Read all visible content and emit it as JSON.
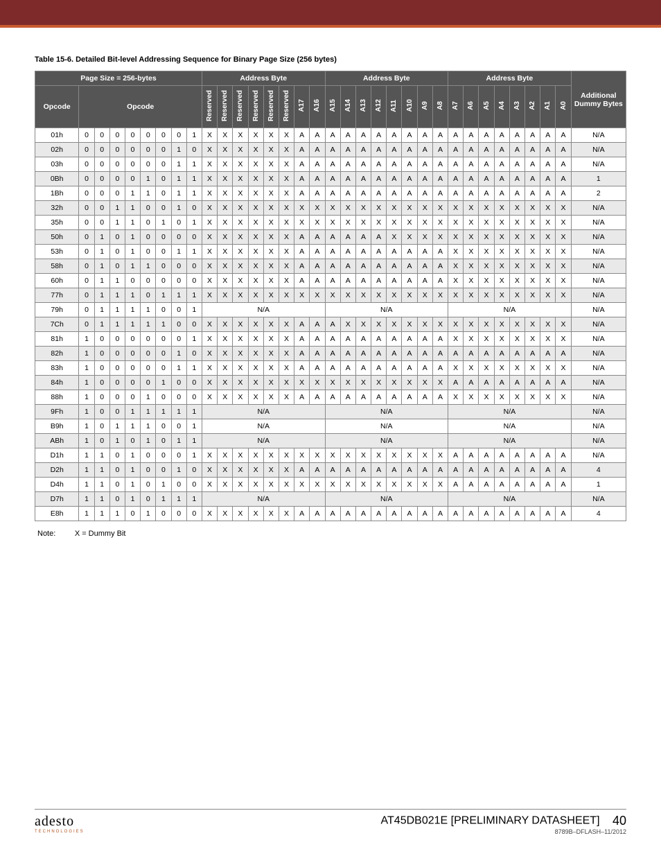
{
  "table_caption": "Table 15-6.   Detailed Bit-level Addressing Sequence for Binary Page Size (256 bytes)",
  "headers": {
    "page_size": "Page Size = 256-bytes",
    "address_byte": "Address Byte",
    "opcode1": "Opcode",
    "opcode2": "Opcode",
    "extra": "Additional Dummy Bytes",
    "reserved": "Reserved",
    "bits": [
      "A17",
      "A16",
      "A15",
      "A14",
      "A13",
      "A12",
      "A11",
      "A10",
      "A9",
      "A8",
      "A7",
      "A6",
      "A5",
      "A4",
      "A3",
      "A2",
      "A1",
      "A0"
    ]
  },
  "rows": [
    {
      "op": "01h",
      "bits": [
        "0",
        "0",
        "0",
        "0",
        "0",
        "0",
        "0",
        "1"
      ],
      "ab1": [
        "X",
        "X",
        "X",
        "X",
        "X",
        "X",
        "A",
        "A"
      ],
      "ab2": [
        "A",
        "A",
        "A",
        "A",
        "A",
        "A",
        "A",
        "A"
      ],
      "ab3": [
        "A",
        "A",
        "A",
        "A",
        "A",
        "A",
        "A",
        "A"
      ],
      "extra": "N/A"
    },
    {
      "op": "02h",
      "bits": [
        "0",
        "0",
        "0",
        "0",
        "0",
        "0",
        "1",
        "0"
      ],
      "ab1": [
        "X",
        "X",
        "X",
        "X",
        "X",
        "X",
        "A",
        "A"
      ],
      "ab2": [
        "A",
        "A",
        "A",
        "A",
        "A",
        "A",
        "A",
        "A"
      ],
      "ab3": [
        "A",
        "A",
        "A",
        "A",
        "A",
        "A",
        "A",
        "A"
      ],
      "extra": "N/A"
    },
    {
      "op": "03h",
      "bits": [
        "0",
        "0",
        "0",
        "0",
        "0",
        "0",
        "1",
        "1"
      ],
      "ab1": [
        "X",
        "X",
        "X",
        "X",
        "X",
        "X",
        "A",
        "A"
      ],
      "ab2": [
        "A",
        "A",
        "A",
        "A",
        "A",
        "A",
        "A",
        "A"
      ],
      "ab3": [
        "A",
        "A",
        "A",
        "A",
        "A",
        "A",
        "A",
        "A"
      ],
      "extra": "N/A"
    },
    {
      "op": "0Bh",
      "bits": [
        "0",
        "0",
        "0",
        "0",
        "1",
        "0",
        "1",
        "1"
      ],
      "ab1": [
        "X",
        "X",
        "X",
        "X",
        "X",
        "X",
        "A",
        "A"
      ],
      "ab2": [
        "A",
        "A",
        "A",
        "A",
        "A",
        "A",
        "A",
        "A"
      ],
      "ab3": [
        "A",
        "A",
        "A",
        "A",
        "A",
        "A",
        "A",
        "A"
      ],
      "extra": "1"
    },
    {
      "op": "1Bh",
      "bits": [
        "0",
        "0",
        "0",
        "1",
        "1",
        "0",
        "1",
        "1"
      ],
      "ab1": [
        "X",
        "X",
        "X",
        "X",
        "X",
        "X",
        "A",
        "A"
      ],
      "ab2": [
        "A",
        "A",
        "A",
        "A",
        "A",
        "A",
        "A",
        "A"
      ],
      "ab3": [
        "A",
        "A",
        "A",
        "A",
        "A",
        "A",
        "A",
        "A"
      ],
      "extra": "2"
    },
    {
      "op": "32h",
      "bits": [
        "0",
        "0",
        "1",
        "1",
        "0",
        "0",
        "1",
        "0"
      ],
      "ab1": [
        "X",
        "X",
        "X",
        "X",
        "X",
        "X",
        "X",
        "X"
      ],
      "ab2": [
        "X",
        "X",
        "X",
        "X",
        "X",
        "X",
        "X",
        "X"
      ],
      "ab3": [
        "X",
        "X",
        "X",
        "X",
        "X",
        "X",
        "X",
        "X"
      ],
      "extra": "N/A"
    },
    {
      "op": "35h",
      "bits": [
        "0",
        "0",
        "1",
        "1",
        "0",
        "1",
        "0",
        "1"
      ],
      "ab1": [
        "X",
        "X",
        "X",
        "X",
        "X",
        "X",
        "X",
        "X"
      ],
      "ab2": [
        "X",
        "X",
        "X",
        "X",
        "X",
        "X",
        "X",
        "X"
      ],
      "ab3": [
        "X",
        "X",
        "X",
        "X",
        "X",
        "X",
        "X",
        "X"
      ],
      "extra": "N/A"
    },
    {
      "op": "50h",
      "bits": [
        "0",
        "1",
        "0",
        "1",
        "0",
        "0",
        "0",
        "0"
      ],
      "ab1": [
        "X",
        "X",
        "X",
        "X",
        "X",
        "X",
        "A",
        "A"
      ],
      "ab2": [
        "A",
        "A",
        "A",
        "A",
        "X",
        "X",
        "X",
        "X"
      ],
      "ab3": [
        "X",
        "X",
        "X",
        "X",
        "X",
        "X",
        "X",
        "X"
      ],
      "extra": "N/A"
    },
    {
      "op": "53h",
      "bits": [
        "0",
        "1",
        "0",
        "1",
        "0",
        "0",
        "1",
        "1"
      ],
      "ab1": [
        "X",
        "X",
        "X",
        "X",
        "X",
        "X",
        "A",
        "A"
      ],
      "ab2": [
        "A",
        "A",
        "A",
        "A",
        "A",
        "A",
        "A",
        "A"
      ],
      "ab3": [
        "X",
        "X",
        "X",
        "X",
        "X",
        "X",
        "X",
        "X"
      ],
      "extra": "N/A"
    },
    {
      "op": "58h",
      "bits": [
        "0",
        "1",
        "0",
        "1",
        "1",
        "0",
        "0",
        "0"
      ],
      "ab1": [
        "X",
        "X",
        "X",
        "X",
        "X",
        "X",
        "A",
        "A"
      ],
      "ab2": [
        "A",
        "A",
        "A",
        "A",
        "A",
        "A",
        "A",
        "A"
      ],
      "ab3": [
        "X",
        "X",
        "X",
        "X",
        "X",
        "X",
        "X",
        "X"
      ],
      "extra": "N/A"
    },
    {
      "op": "60h",
      "bits": [
        "0",
        "1",
        "1",
        "0",
        "0",
        "0",
        "0",
        "0"
      ],
      "ab1": [
        "X",
        "X",
        "X",
        "X",
        "X",
        "X",
        "A",
        "A"
      ],
      "ab2": [
        "A",
        "A",
        "A",
        "A",
        "A",
        "A",
        "A",
        "A"
      ],
      "ab3": [
        "X",
        "X",
        "X",
        "X",
        "X",
        "X",
        "X",
        "X"
      ],
      "extra": "N/A"
    },
    {
      "op": "77h",
      "bits": [
        "0",
        "1",
        "1",
        "1",
        "0",
        "1",
        "1",
        "1"
      ],
      "ab1": [
        "X",
        "X",
        "X",
        "X",
        "X",
        "X",
        "X",
        "X"
      ],
      "ab2": [
        "X",
        "X",
        "X",
        "X",
        "X",
        "X",
        "X",
        "X"
      ],
      "ab3": [
        "X",
        "X",
        "X",
        "X",
        "X",
        "X",
        "X",
        "X"
      ],
      "extra": "N/A"
    },
    {
      "op": "79h",
      "bits": [
        "0",
        "1",
        "1",
        "1",
        "1",
        "0",
        "0",
        "1"
      ],
      "ab1": "N/A",
      "ab2": "N/A",
      "ab3": "N/A",
      "extra": "N/A"
    },
    {
      "op": "7Ch",
      "bits": [
        "0",
        "1",
        "1",
        "1",
        "1",
        "1",
        "0",
        "0"
      ],
      "ab1": [
        "X",
        "X",
        "X",
        "X",
        "X",
        "X",
        "A",
        "A"
      ],
      "ab2": [
        "A",
        "X",
        "X",
        "X",
        "X",
        "X",
        "X",
        "X"
      ],
      "ab3": [
        "X",
        "X",
        "X",
        "X",
        "X",
        "X",
        "X",
        "X"
      ],
      "extra": "N/A"
    },
    {
      "op": "81h",
      "bits": [
        "1",
        "0",
        "0",
        "0",
        "0",
        "0",
        "0",
        "1"
      ],
      "ab1": [
        "X",
        "X",
        "X",
        "X",
        "X",
        "X",
        "A",
        "A"
      ],
      "ab2": [
        "A",
        "A",
        "A",
        "A",
        "A",
        "A",
        "A",
        "A"
      ],
      "ab3": [
        "X",
        "X",
        "X",
        "X",
        "X",
        "X",
        "X",
        "X"
      ],
      "extra": "N/A"
    },
    {
      "op": "82h",
      "bits": [
        "1",
        "0",
        "0",
        "0",
        "0",
        "0",
        "1",
        "0"
      ],
      "ab1": [
        "X",
        "X",
        "X",
        "X",
        "X",
        "X",
        "A",
        "A"
      ],
      "ab2": [
        "A",
        "A",
        "A",
        "A",
        "A",
        "A",
        "A",
        "A"
      ],
      "ab3": [
        "A",
        "A",
        "A",
        "A",
        "A",
        "A",
        "A",
        "A"
      ],
      "extra": "N/A"
    },
    {
      "op": "83h",
      "bits": [
        "1",
        "0",
        "0",
        "0",
        "0",
        "0",
        "1",
        "1"
      ],
      "ab1": [
        "X",
        "X",
        "X",
        "X",
        "X",
        "X",
        "A",
        "A"
      ],
      "ab2": [
        "A",
        "A",
        "A",
        "A",
        "A",
        "A",
        "A",
        "A"
      ],
      "ab3": [
        "X",
        "X",
        "X",
        "X",
        "X",
        "X",
        "X",
        "X"
      ],
      "extra": "N/A"
    },
    {
      "op": "84h",
      "bits": [
        "1",
        "0",
        "0",
        "0",
        "0",
        "1",
        "0",
        "0"
      ],
      "ab1": [
        "X",
        "X",
        "X",
        "X",
        "X",
        "X",
        "X",
        "X"
      ],
      "ab2": [
        "X",
        "X",
        "X",
        "X",
        "X",
        "X",
        "X",
        "X"
      ],
      "ab3": [
        "A",
        "A",
        "A",
        "A",
        "A",
        "A",
        "A",
        "A"
      ],
      "extra": "N/A"
    },
    {
      "op": "88h",
      "bits": [
        "1",
        "0",
        "0",
        "0",
        "1",
        "0",
        "0",
        "0"
      ],
      "ab1": [
        "X",
        "X",
        "X",
        "X",
        "X",
        "X",
        "A",
        "A"
      ],
      "ab2": [
        "A",
        "A",
        "A",
        "A",
        "A",
        "A",
        "A",
        "A"
      ],
      "ab3": [
        "X",
        "X",
        "X",
        "X",
        "X",
        "X",
        "X",
        "X"
      ],
      "extra": "N/A"
    },
    {
      "op": "9Fh",
      "bits": [
        "1",
        "0",
        "0",
        "1",
        "1",
        "1",
        "1",
        "1"
      ],
      "ab1": "N/A",
      "ab2": "N/A",
      "ab3": "N/A",
      "extra": "N/A"
    },
    {
      "op": "B9h",
      "bits": [
        "1",
        "0",
        "1",
        "1",
        "1",
        "0",
        "0",
        "1"
      ],
      "ab1": "N/A",
      "ab2": "N/A",
      "ab3": "N/A",
      "extra": "N/A"
    },
    {
      "op": "ABh",
      "bits": [
        "1",
        "0",
        "1",
        "0",
        "1",
        "0",
        "1",
        "1"
      ],
      "ab1": "N/A",
      "ab2": "N/A",
      "ab3": "N/A",
      "extra": "N/A"
    },
    {
      "op": "D1h",
      "bits": [
        "1",
        "1",
        "0",
        "1",
        "0",
        "0",
        "0",
        "1"
      ],
      "ab1": [
        "X",
        "X",
        "X",
        "X",
        "X",
        "X",
        "X",
        "X"
      ],
      "ab2": [
        "X",
        "X",
        "X",
        "X",
        "X",
        "X",
        "X",
        "X"
      ],
      "ab3": [
        "A",
        "A",
        "A",
        "A",
        "A",
        "A",
        "A",
        "A"
      ],
      "extra": "N/A"
    },
    {
      "op": "D2h",
      "bits": [
        "1",
        "1",
        "0",
        "1",
        "0",
        "0",
        "1",
        "0"
      ],
      "ab1": [
        "X",
        "X",
        "X",
        "X",
        "X",
        "X",
        "A",
        "A"
      ],
      "ab2": [
        "A",
        "A",
        "A",
        "A",
        "A",
        "A",
        "A",
        "A"
      ],
      "ab3": [
        "A",
        "A",
        "A",
        "A",
        "A",
        "A",
        "A",
        "A"
      ],
      "extra": "4"
    },
    {
      "op": "D4h",
      "bits": [
        "1",
        "1",
        "0",
        "1",
        "0",
        "1",
        "0",
        "0"
      ],
      "ab1": [
        "X",
        "X",
        "X",
        "X",
        "X",
        "X",
        "X",
        "X"
      ],
      "ab2": [
        "X",
        "X",
        "X",
        "X",
        "X",
        "X",
        "X",
        "X"
      ],
      "ab3": [
        "A",
        "A",
        "A",
        "A",
        "A",
        "A",
        "A",
        "A"
      ],
      "extra": "1"
    },
    {
      "op": "D7h",
      "bits": [
        "1",
        "1",
        "0",
        "1",
        "0",
        "1",
        "1",
        "1"
      ],
      "ab1": "N/A",
      "ab2": "N/A",
      "ab3": "N/A",
      "extra": "N/A"
    },
    {
      "op": "E8h",
      "bits": [
        "1",
        "1",
        "1",
        "0",
        "1",
        "0",
        "0",
        "0"
      ],
      "ab1": [
        "X",
        "X",
        "X",
        "X",
        "X",
        "X",
        "A",
        "A"
      ],
      "ab2": [
        "A",
        "A",
        "A",
        "A",
        "A",
        "A",
        "A",
        "A"
      ],
      "ab3": [
        "A",
        "A",
        "A",
        "A",
        "A",
        "A",
        "A",
        "A"
      ],
      "extra": "4"
    }
  ],
  "note_label": "Note:",
  "note_text": "X = Dummy Bit",
  "footer": {
    "logo": "adesto",
    "logo_sub": "TECHNOLOGIES",
    "doc": "AT45DB021E [PRELIMINARY DATASHEET]",
    "sub": "8789B–DFLASH–11/2012",
    "page": "40"
  }
}
